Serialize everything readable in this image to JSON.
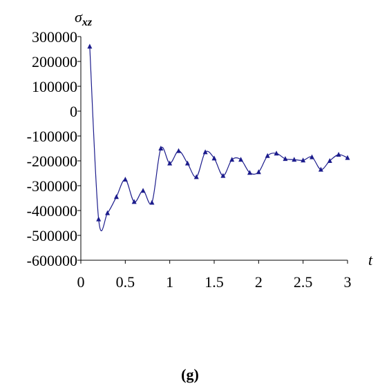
{
  "chart_data": {
    "type": "line",
    "ylabel": "σ",
    "ylabel_subscript": "xz",
    "xlabel": "t",
    "caption": "(g)",
    "x": [
      0.1,
      0.2,
      0.3,
      0.4,
      0.5,
      0.6,
      0.7,
      0.8,
      0.9,
      1.0,
      1.1,
      1.2,
      1.3,
      1.4,
      1.5,
      1.6,
      1.7,
      1.8,
      1.9,
      2.0,
      2.1,
      2.2,
      2.3,
      2.4,
      2.5,
      2.6,
      2.7,
      2.8,
      2.9,
      3.0
    ],
    "series": [
      {
        "color": "#1c1c8c",
        "values": [
          260000,
          -435000,
          -410000,
          -345000,
          -275000,
          -365000,
          -320000,
          -368000,
          -150000,
          -210000,
          -160000,
          -210000,
          -265000,
          -165000,
          -190000,
          -260000,
          -195000,
          -195000,
          -248000,
          -245000,
          -180000,
          -170000,
          -192000,
          -195000,
          -198000,
          -185000,
          -235000,
          -200000,
          -175000,
          -188000
        ]
      }
    ],
    "xlim": [
      0,
      3
    ],
    "xticks": [
      0,
      0.5,
      1,
      1.5,
      2,
      2.5,
      3
    ],
    "ylim": [
      -600000,
      300000
    ],
    "yticks": [
      300000,
      200000,
      100000,
      0,
      -100000,
      -200000,
      -300000,
      -400000,
      -500000,
      -600000
    ],
    "smooth": true,
    "marker": "triangle"
  }
}
